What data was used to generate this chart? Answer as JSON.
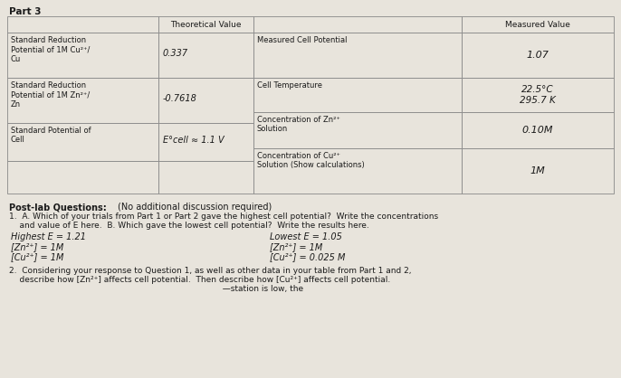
{
  "bg_color": "#e8e4dc",
  "line_color": "#888888",
  "text_color": "#1a1a1a",
  "title": "Part 3",
  "col1_header": "Theoretical Value",
  "col4_header": "Measured Value",
  "left_rows": [
    [
      "Standard Reduction\nPotential of 1M Cu²⁺/\nCu",
      "0.337"
    ],
    [
      "Standard Reduction\nPotential of 1M Zn²⁺/\nZn",
      "-0.7618"
    ],
    [
      "Standard Potential of\nCell",
      "E°cell ≈ 1.1 V"
    ]
  ],
  "right_rows": [
    [
      "Measured Cell Potential",
      "1.07"
    ],
    [
      "Cell Temperature",
      "22.5°C\n295.7 K"
    ],
    [
      "Concentration of Zn²⁺\nSolution",
      "0.10M"
    ],
    [
      "Concentration of Cu²⁺\nSolution (Show calculations)",
      "1M"
    ]
  ],
  "postlab_bold": "Post-lab Questions:",
  "postlab_normal": "        (No additional discussion required)",
  "q1_line1": "1.  A. Which of your trials from Part 1 or Part 2 gave the highest cell potential?  Write the concentrations",
  "q1_line2": "    and value of E here.  B. Which gave the lowest cell potential?  Write the results here.",
  "highest_E": "Highest E = 1.21",
  "lowest_E": "Lowest E = 1.05",
  "highest_zn": "[Zn²⁺] = 1M",
  "lowest_zn": "[Zn²⁺] = 1M",
  "highest_cu": "[Cu²⁺] = 1M",
  "lowest_cu": "[Cu²⁺] = 0.025 M",
  "q2_line1": "2.  Considering your response to Question 1, as well as other data in your table from Part 1 and 2,",
  "q2_line2": "    describe how [Zn²⁺] affects cell potential.  Then describe how [Cu²⁺] affects cell potential.",
  "q2_line3": "                                                                                  —station is low, the"
}
